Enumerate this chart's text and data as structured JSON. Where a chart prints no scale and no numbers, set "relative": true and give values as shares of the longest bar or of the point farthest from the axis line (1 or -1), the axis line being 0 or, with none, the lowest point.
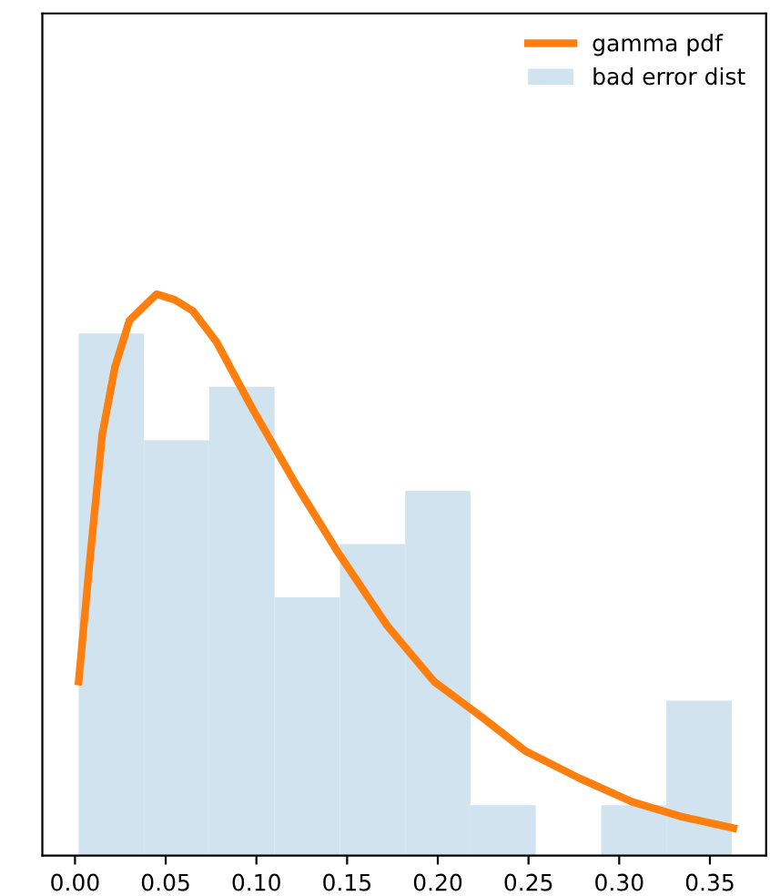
{
  "chart_data": {
    "type": "histogram",
    "relative": true,
    "series": [
      {
        "type": "line",
        "name": "gamma pdf",
        "color": "#ff7f0e",
        "x": [
          0.002,
          0.008,
          0.015,
          0.022,
          0.03,
          0.045,
          0.055,
          0.065,
          0.078,
          0.098,
          0.122,
          0.145,
          0.172,
          0.198,
          0.225,
          0.248,
          0.278,
          0.307,
          0.335,
          0.363
        ],
        "values": [
          0.31,
          0.52,
          0.75,
          0.87,
          0.953,
          1.0,
          0.99,
          0.97,
          0.915,
          0.795,
          0.66,
          0.54,
          0.41,
          0.31,
          0.245,
          0.187,
          0.138,
          0.096,
          0.069,
          0.049
        ]
      },
      {
        "name": "bad error dist",
        "color": "#d2e3f0",
        "bins": [
          0.002,
          0.038,
          0.074,
          0.11,
          0.146,
          0.182,
          0.218,
          0.254,
          0.29,
          0.326,
          0.362
        ],
        "values": [
          0.93,
          0.74,
          0.835,
          0.46,
          0.555,
          0.65,
          0.09,
          0,
          0.09,
          0.276
        ]
      }
    ],
    "xlim": [
      -0.018,
      0.381
    ],
    "xticks": [
      {
        "value": 0,
        "label": "0.00"
      },
      {
        "value": 0.05,
        "label": "0.05"
      },
      {
        "value": 0.1,
        "label": "0.10"
      },
      {
        "value": 0.15,
        "label": "0.15"
      },
      {
        "value": 0.2,
        "label": "0.20"
      },
      {
        "value": 0.25,
        "label": "0.25"
      },
      {
        "value": 0.3,
        "label": "0.30"
      },
      {
        "value": 0.35,
        "label": "0.35"
      }
    ],
    "legend": "top right",
    "grid": false
  }
}
